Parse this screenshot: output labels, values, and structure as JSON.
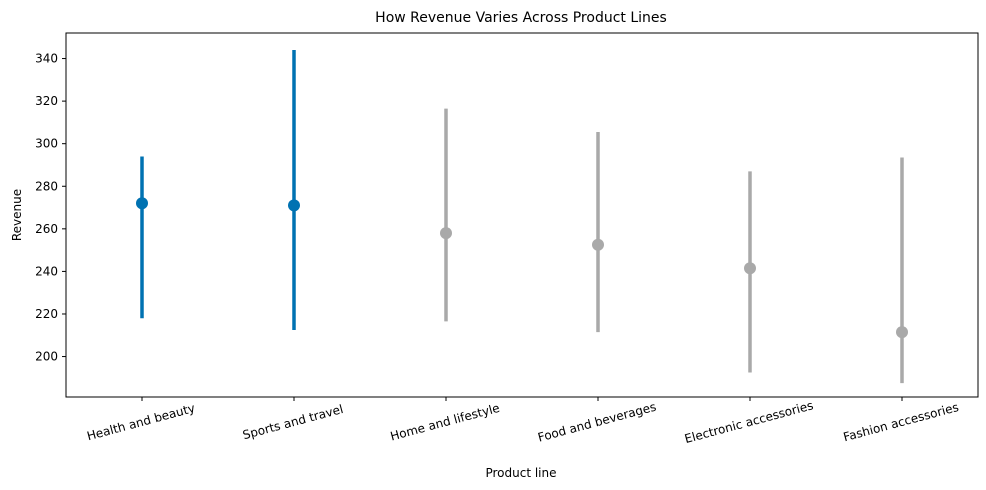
{
  "chart_data": {
    "type": "scatter",
    "title": "How Revenue Varies Across Product Lines",
    "xlabel": "Product line",
    "ylabel": "Revenue",
    "ylim": [
      181,
      352
    ],
    "yticks": [
      200,
      220,
      240,
      260,
      280,
      300,
      320,
      340
    ],
    "grid": false,
    "categories": [
      "Health and beauty",
      "Sports and travel",
      "Home and lifestyle",
      "Food and beverages",
      "Electronic accessories",
      "Fashion accessories"
    ],
    "values": [
      272,
      271,
      258,
      252.5,
      241.5,
      211.5
    ],
    "ci_low": [
      218,
      212.5,
      216.5,
      211.5,
      192.5,
      187.5
    ],
    "ci_high": [
      294,
      344,
      316.5,
      305.5,
      287,
      293.5
    ],
    "highlighted": [
      true,
      true,
      false,
      false,
      false,
      false
    ],
    "colors": {
      "highlight": "#0072b2",
      "muted": "#a9a9a9"
    }
  }
}
